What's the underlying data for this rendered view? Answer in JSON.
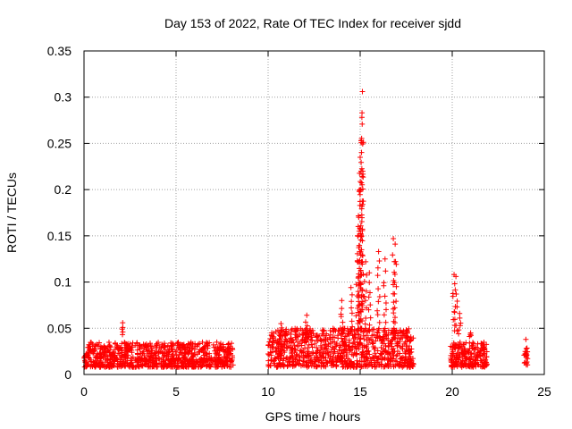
{
  "chart_data": {
    "type": "scatter",
    "title": "Day 153 of 2022, Rate Of TEC Index for receiver sjdd",
    "xlabel": "GPS time / hours",
    "ylabel": "ROTI / TECUs",
    "xlim": [
      0,
      25
    ],
    "ylim": [
      0,
      0.35
    ],
    "xticks": [
      0,
      5,
      10,
      15,
      20,
      25
    ],
    "xtick_labels": [
      "0",
      "5",
      "10",
      "15",
      "20",
      "25"
    ],
    "yticks": [
      0,
      0.05,
      0.1,
      0.15,
      0.2,
      0.25,
      0.3,
      0.35
    ],
    "ytick_labels": [
      "0",
      "0.05",
      "0.1",
      "0.15",
      "0.2",
      "0.25",
      "0.3",
      "0.35"
    ],
    "grid": true,
    "marker": "+",
    "color": "#ff0000",
    "data_segments": [
      {
        "t_start": 0.0,
        "t_end": 8.1,
        "roti_min": 0.008,
        "roti_typical_max": 0.035,
        "roti_peak": 0.056
      },
      {
        "t_start": 10.0,
        "t_end": 17.9,
        "roti_min": 0.008,
        "roti_typical_max": 0.05,
        "roti_peak": 0.306
      },
      {
        "t_start": 19.9,
        "t_end": 21.9,
        "roti_min": 0.008,
        "roti_typical_max": 0.035,
        "roti_peak": 0.109
      },
      {
        "t_start": 23.9,
        "t_end": 24.1,
        "roti_min": 0.01,
        "roti_typical_max": 0.03,
        "roti_peak": 0.038
      }
    ],
    "notable_points": [
      {
        "x": 2.1,
        "y": 0.056
      },
      {
        "x": 10.7,
        "y": 0.055
      },
      {
        "x": 12.1,
        "y": 0.064
      },
      {
        "x": 14.0,
        "y": 0.08
      },
      {
        "x": 14.5,
        "y": 0.094
      },
      {
        "x": 14.85,
        "y": 0.123
      },
      {
        "x": 14.92,
        "y": 0.17
      },
      {
        "x": 14.95,
        "y": 0.198
      },
      {
        "x": 15.0,
        "y": 0.235
      },
      {
        "x": 15.05,
        "y": 0.253
      },
      {
        "x": 15.1,
        "y": 0.283
      },
      {
        "x": 15.12,
        "y": 0.306
      },
      {
        "x": 15.3,
        "y": 0.122
      },
      {
        "x": 15.5,
        "y": 0.11
      },
      {
        "x": 16.0,
        "y": 0.133
      },
      {
        "x": 16.35,
        "y": 0.125
      },
      {
        "x": 16.8,
        "y": 0.147
      },
      {
        "x": 16.9,
        "y": 0.141
      },
      {
        "x": 20.1,
        "y": 0.108
      },
      {
        "x": 20.2,
        "y": 0.106
      },
      {
        "x": 20.4,
        "y": 0.066
      },
      {
        "x": 21.0,
        "y": 0.045
      },
      {
        "x": 24.0,
        "y": 0.038
      }
    ]
  }
}
